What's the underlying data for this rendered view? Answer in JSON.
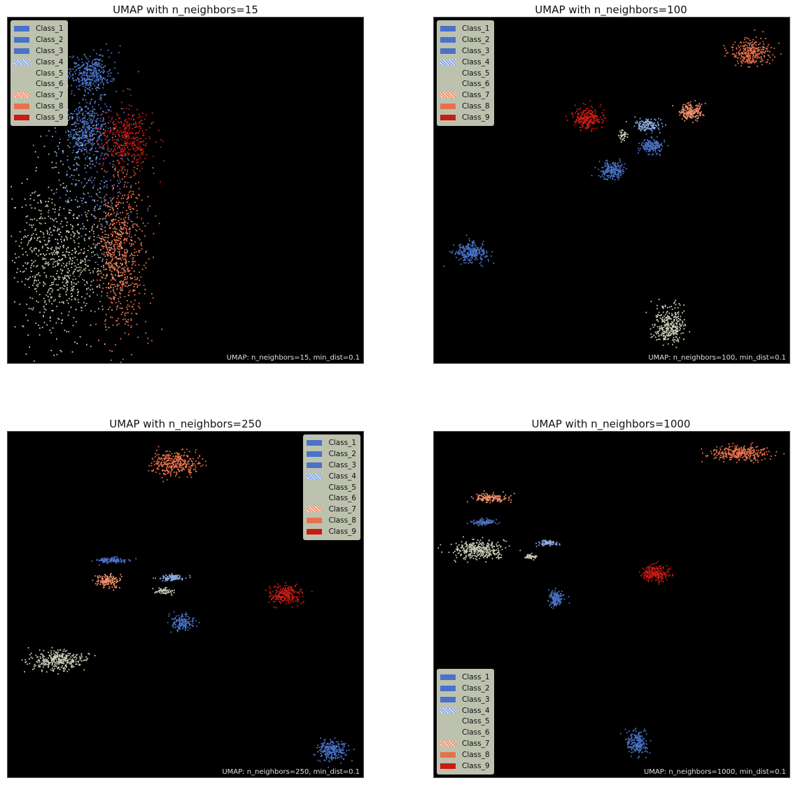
{
  "class_colors": {
    "Class_1": "#4a72c8",
    "Class_2": "#4a72c8",
    "Class_3": "#4a72c8",
    "Class_4": "#8aa9e3",
    "Class_5": "#c8ccb6",
    "Class_6": "#c8ccb6",
    "Class_7": "#f2916a",
    "Class_8": "#e8714c",
    "Class_9": "#c81c14"
  },
  "legend_items": [
    "Class_1",
    "Class_2",
    "Class_3",
    "Class_4",
    "Class_5",
    "Class_6",
    "Class_7",
    "Class_8",
    "Class_9"
  ],
  "chart_data": [
    {
      "type": "scatter",
      "title": "UMAP with n_neighbors=15",
      "annotation": "UMAP: n_neighbors=15, min_dist=0.1",
      "legend_position": "top-left",
      "background": "#000000",
      "axes_ticks": false,
      "clusters": [
        {
          "class": "Class_1",
          "cx": 0.23,
          "cy": 0.84,
          "rx": 0.06,
          "ry": 0.05,
          "n": 340
        },
        {
          "class": "Class_2",
          "cx": 0.22,
          "cy": 0.68,
          "rx": 0.05,
          "ry": 0.08,
          "n": 300
        },
        {
          "class": "Class_3",
          "cx": 0.26,
          "cy": 0.55,
          "rx": 0.11,
          "ry": 0.3,
          "n": 260
        },
        {
          "class": "Class_4",
          "cx": 0.2,
          "cy": 0.6,
          "rx": 0.1,
          "ry": 0.25,
          "n": 160
        },
        {
          "class": "Class_5",
          "cx": 0.12,
          "cy": 0.3,
          "rx": 0.11,
          "ry": 0.24,
          "n": 560
        },
        {
          "class": "Class_6",
          "cx": 0.2,
          "cy": 0.28,
          "rx": 0.08,
          "ry": 0.2,
          "n": 200
        },
        {
          "class": "Class_7",
          "cx": 0.3,
          "cy": 0.3,
          "rx": 0.05,
          "ry": 0.16,
          "n": 240
        },
        {
          "class": "Class_8",
          "cx": 0.32,
          "cy": 0.33,
          "rx": 0.07,
          "ry": 0.26,
          "n": 520
        },
        {
          "class": "Class_9",
          "cx": 0.33,
          "cy": 0.65,
          "rx": 0.07,
          "ry": 0.09,
          "n": 380
        }
      ]
    },
    {
      "type": "scatter",
      "title": "UMAP with n_neighbors=100",
      "annotation": "UMAP: n_neighbors=100, min_dist=0.1",
      "legend_position": "top-left",
      "background": "#000000",
      "axes_ticks": false,
      "clusters": [
        {
          "class": "Class_1",
          "cx": 0.1,
          "cy": 0.32,
          "rx": 0.045,
          "ry": 0.028,
          "n": 260
        },
        {
          "class": "Class_2",
          "cx": 0.5,
          "cy": 0.56,
          "rx": 0.035,
          "ry": 0.025,
          "n": 200
        },
        {
          "class": "Class_3",
          "cx": 0.61,
          "cy": 0.63,
          "rx": 0.035,
          "ry": 0.022,
          "n": 180
        },
        {
          "class": "Class_4",
          "cx": 0.6,
          "cy": 0.69,
          "rx": 0.035,
          "ry": 0.018,
          "n": 140
        },
        {
          "class": "Class_5",
          "cx": 0.66,
          "cy": 0.11,
          "rx": 0.045,
          "ry": 0.055,
          "n": 320
        },
        {
          "class": "Class_6",
          "cx": 0.53,
          "cy": 0.66,
          "rx": 0.012,
          "ry": 0.015,
          "n": 40
        },
        {
          "class": "Class_7",
          "cx": 0.72,
          "cy": 0.73,
          "rx": 0.035,
          "ry": 0.025,
          "n": 180
        },
        {
          "class": "Class_8",
          "cx": 0.89,
          "cy": 0.9,
          "rx": 0.055,
          "ry": 0.038,
          "n": 300
        },
        {
          "class": "Class_9",
          "cx": 0.43,
          "cy": 0.71,
          "rx": 0.042,
          "ry": 0.03,
          "n": 260
        }
      ]
    },
    {
      "type": "scatter",
      "title": "UMAP with n_neighbors=250",
      "annotation": "UMAP: n_neighbors=250, min_dist=0.1",
      "legend_position": "top-right",
      "background": "#000000",
      "axes_ticks": false,
      "clusters": [
        {
          "class": "Class_1",
          "cx": 0.29,
          "cy": 0.63,
          "rx": 0.045,
          "ry": 0.008,
          "n": 120
        },
        {
          "class": "Class_2",
          "cx": 0.49,
          "cy": 0.45,
          "rx": 0.03,
          "ry": 0.022,
          "n": 160
        },
        {
          "class": "Class_3",
          "cx": 0.91,
          "cy": 0.08,
          "rx": 0.04,
          "ry": 0.03,
          "n": 240
        },
        {
          "class": "Class_4",
          "cx": 0.46,
          "cy": 0.58,
          "rx": 0.035,
          "ry": 0.01,
          "n": 110
        },
        {
          "class": "Class_5",
          "cx": 0.14,
          "cy": 0.34,
          "rx": 0.075,
          "ry": 0.028,
          "n": 340
        },
        {
          "class": "Class_6",
          "cx": 0.44,
          "cy": 0.54,
          "rx": 0.025,
          "ry": 0.01,
          "n": 60
        },
        {
          "class": "Class_7",
          "cx": 0.28,
          "cy": 0.57,
          "rx": 0.035,
          "ry": 0.018,
          "n": 140
        },
        {
          "class": "Class_8",
          "cx": 0.47,
          "cy": 0.91,
          "rx": 0.065,
          "ry": 0.035,
          "n": 340
        },
        {
          "class": "Class_9",
          "cx": 0.78,
          "cy": 0.53,
          "rx": 0.045,
          "ry": 0.025,
          "n": 240
        }
      ]
    },
    {
      "type": "scatter",
      "title": "UMAP with n_neighbors=1000",
      "annotation": "UMAP: n_neighbors=1000, min_dist=0.1",
      "legend_position": "bottom-left",
      "background": "#000000",
      "axes_ticks": false,
      "clusters": [
        {
          "class": "Class_1",
          "cx": 0.14,
          "cy": 0.74,
          "rx": 0.035,
          "ry": 0.008,
          "n": 100
        },
        {
          "class": "Class_2",
          "cx": 0.34,
          "cy": 0.52,
          "rx": 0.022,
          "ry": 0.025,
          "n": 150
        },
        {
          "class": "Class_3",
          "cx": 0.57,
          "cy": 0.1,
          "rx": 0.03,
          "ry": 0.035,
          "n": 200
        },
        {
          "class": "Class_4",
          "cx": 0.32,
          "cy": 0.68,
          "rx": 0.03,
          "ry": 0.007,
          "n": 90
        },
        {
          "class": "Class_5",
          "cx": 0.12,
          "cy": 0.66,
          "rx": 0.075,
          "ry": 0.028,
          "n": 340
        },
        {
          "class": "Class_6",
          "cx": 0.27,
          "cy": 0.64,
          "rx": 0.02,
          "ry": 0.008,
          "n": 50
        },
        {
          "class": "Class_7",
          "cx": 0.16,
          "cy": 0.81,
          "rx": 0.045,
          "ry": 0.013,
          "n": 140
        },
        {
          "class": "Class_8",
          "cx": 0.86,
          "cy": 0.94,
          "rx": 0.08,
          "ry": 0.02,
          "n": 340
        },
        {
          "class": "Class_9",
          "cx": 0.62,
          "cy": 0.59,
          "rx": 0.035,
          "ry": 0.025,
          "n": 220
        }
      ]
    }
  ]
}
